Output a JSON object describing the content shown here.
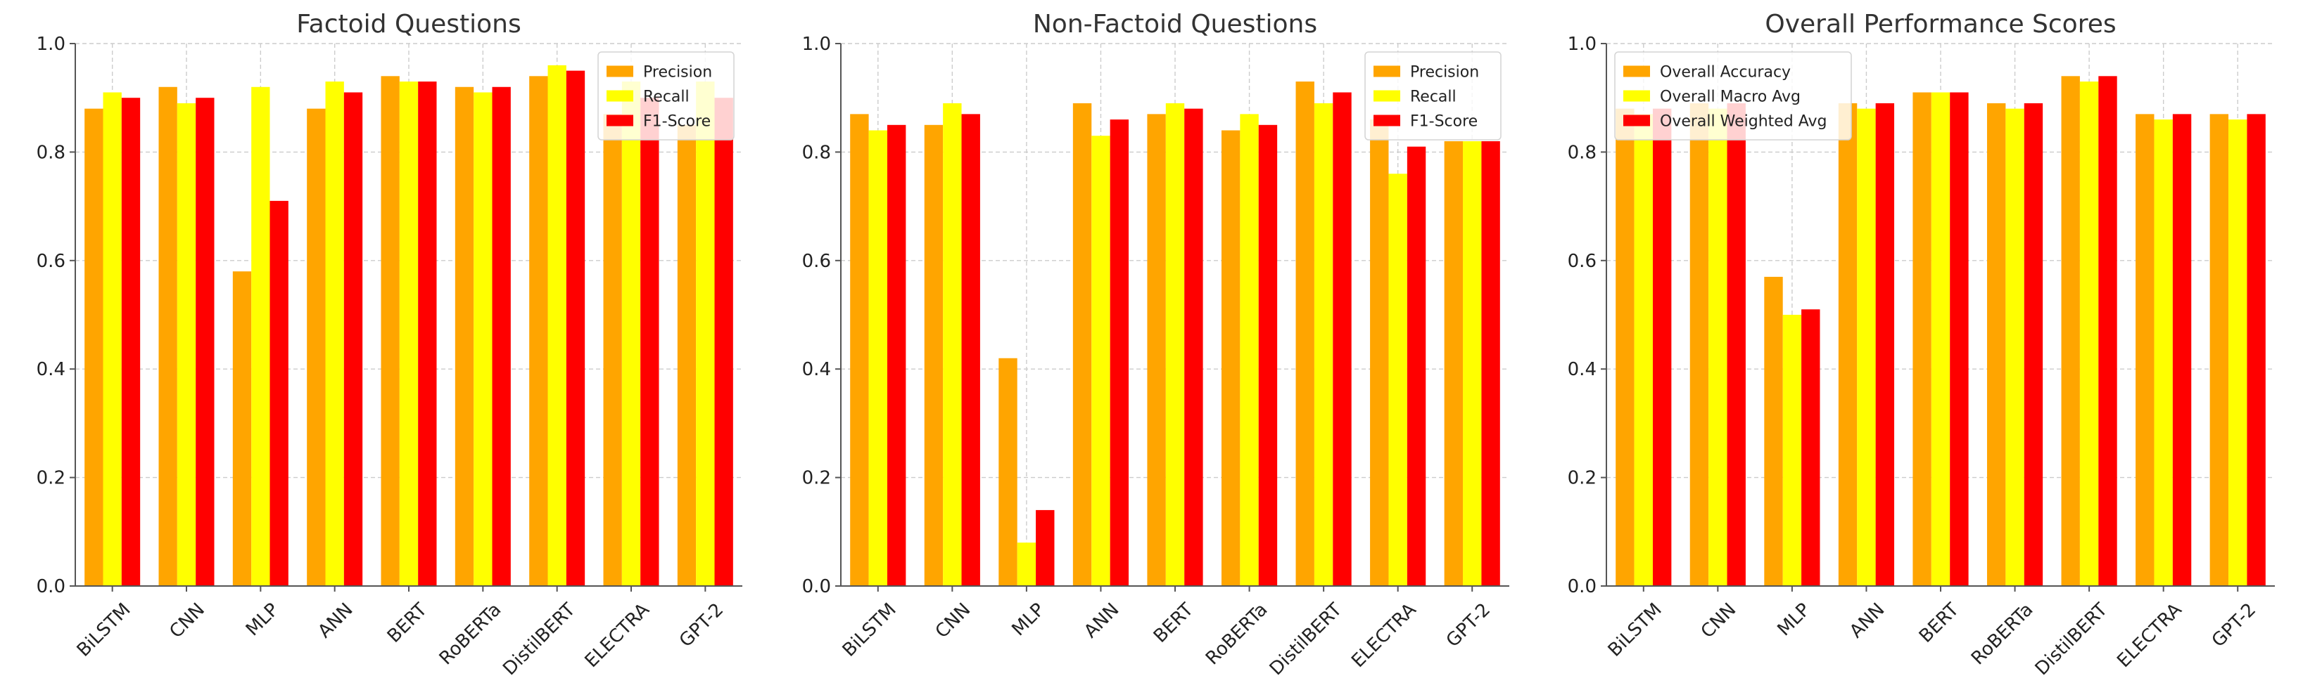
{
  "chart_data": [
    {
      "type": "bar",
      "title": "Factoid Questions",
      "xlabel": "",
      "ylabel": "",
      "ylim": [
        0,
        1.0
      ],
      "yticks": [
        "0.0",
        "0.2",
        "0.4",
        "0.6",
        "0.8",
        "1.0"
      ],
      "grid": true,
      "legend_position": "top-right",
      "categories": [
        "BiLSTM",
        "CNN",
        "MLP",
        "ANN",
        "BERT",
        "RoBERTa",
        "DistilBERT",
        "ELECTRA",
        "GPT-2"
      ],
      "series": [
        {
          "name": "Precision",
          "color": "#FFA500",
          "values": [
            0.88,
            0.92,
            0.58,
            0.88,
            0.94,
            0.92,
            0.94,
            0.87,
            0.85
          ]
        },
        {
          "name": "Recall",
          "color": "#FFFF00",
          "values": [
            0.91,
            0.89,
            0.92,
            0.93,
            0.93,
            0.91,
            0.96,
            0.93,
            0.93
          ]
        },
        {
          "name": "F1-Score",
          "color": "#FF0000",
          "values": [
            0.9,
            0.9,
            0.71,
            0.91,
            0.93,
            0.92,
            0.95,
            0.9,
            0.9
          ]
        }
      ]
    },
    {
      "type": "bar",
      "title": "Non-Factoid Questions",
      "xlabel": "",
      "ylabel": "",
      "ylim": [
        0,
        1.0
      ],
      "yticks": [
        "0.0",
        "0.2",
        "0.4",
        "0.6",
        "0.8",
        "1.0"
      ],
      "grid": true,
      "legend_position": "top-right",
      "categories": [
        "BiLSTM",
        "CNN",
        "MLP",
        "ANN",
        "BERT",
        "RoBERTa",
        "DistilBERT",
        "ELECTRA",
        "GPT-2"
      ],
      "series": [
        {
          "name": "Precision",
          "color": "#FFA500",
          "values": [
            0.87,
            0.85,
            0.42,
            0.89,
            0.87,
            0.84,
            0.93,
            0.86,
            0.82
          ]
        },
        {
          "name": "Recall",
          "color": "#FFFF00",
          "values": [
            0.84,
            0.89,
            0.08,
            0.83,
            0.89,
            0.87,
            0.89,
            0.76,
            0.82
          ]
        },
        {
          "name": "F1-Score",
          "color": "#FF0000",
          "values": [
            0.85,
            0.87,
            0.14,
            0.86,
            0.88,
            0.85,
            0.91,
            0.81,
            0.82
          ]
        }
      ]
    },
    {
      "type": "bar",
      "title": "Overall Performance Scores",
      "xlabel": "",
      "ylabel": "",
      "ylim": [
        0,
        1.0
      ],
      "yticks": [
        "0.0",
        "0.2",
        "0.4",
        "0.6",
        "0.8",
        "1.0"
      ],
      "grid": true,
      "legend_position": "top-left",
      "categories": [
        "BiLSTM",
        "CNN",
        "MLP",
        "ANN",
        "BERT",
        "RoBERTa",
        "DistilBERT",
        "ELECTRA",
        "GPT-2"
      ],
      "series": [
        {
          "name": "Overall Accuracy",
          "color": "#FFA500",
          "values": [
            0.88,
            0.89,
            0.57,
            0.89,
            0.91,
            0.89,
            0.94,
            0.87,
            0.87
          ]
        },
        {
          "name": "Overall Macro Avg",
          "color": "#FFFF00",
          "values": [
            0.87,
            0.88,
            0.5,
            0.88,
            0.91,
            0.88,
            0.93,
            0.86,
            0.86
          ]
        },
        {
          "name": "Overall Weighted Avg",
          "color": "#FF0000",
          "values": [
            0.88,
            0.89,
            0.51,
            0.89,
            0.91,
            0.89,
            0.94,
            0.87,
            0.87
          ]
        }
      ]
    }
  ]
}
